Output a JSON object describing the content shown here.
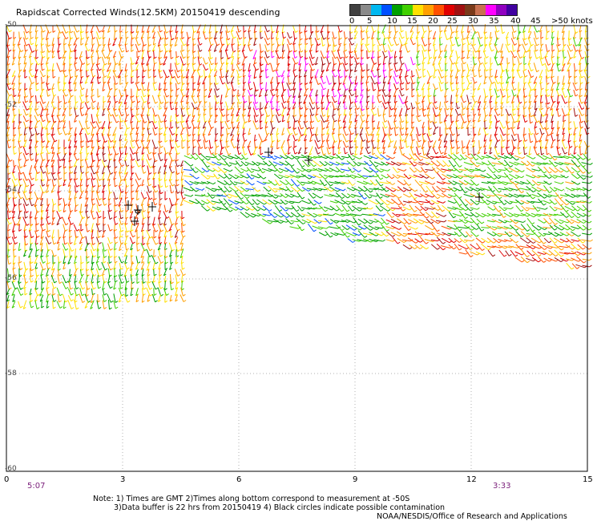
{
  "title": "Rapidscat Corrected Winds(12.5KM) 20150419 descending",
  "speed_scale": {
    "labels": [
      "0",
      "5",
      "10",
      "15",
      "20",
      "25",
      "30",
      "35",
      "40",
      "45",
      ">50 knots"
    ],
    "colors": [
      "#404040",
      "#8a8a8a",
      "#00b8f0",
      "#0050ff",
      "#00a000",
      "#40d000",
      "#ffe000",
      "#ffa000",
      "#ff5000",
      "#e00000",
      "#a01010",
      "#7a3a1a",
      "#c87050",
      "#ff00ff",
      "#9000c0",
      "#4000a0"
    ]
  },
  "axes": {
    "x_ticks": [
      "0",
      "3",
      "6",
      "9",
      "12",
      "15"
    ],
    "y_ticks": [
      "-50",
      "-52",
      "-54",
      "-56",
      "-58",
      "-60"
    ]
  },
  "times": {
    "start": "5:07",
    "end": "3:33"
  },
  "notes": {
    "line1": "Note: 1) Times are GMT 2)Times along bottom correspond to measurement at -50S",
    "line2": "3)Data buffer is 22 hrs from 20150419 4) Black circles indicate possible contamination",
    "credit": "NOAA/NESDIS/Office of Research and Applications"
  }
}
